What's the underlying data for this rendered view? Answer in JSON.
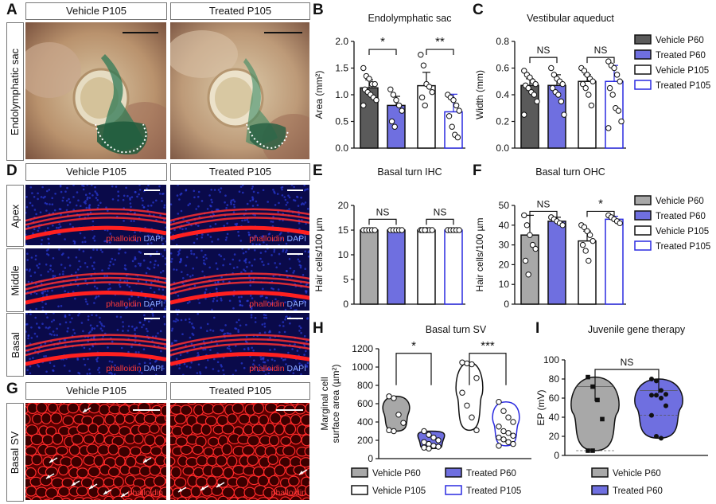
{
  "panel_letters": [
    "A",
    "B",
    "C",
    "D",
    "E",
    "F",
    "G",
    "H",
    "I"
  ],
  "panelA": {
    "headers": [
      "Vehicle P105",
      "Treated P105"
    ],
    "row_label": "Endolymphatic sac"
  },
  "panelD": {
    "headers": [
      "Vehicle P105",
      "Treated P105"
    ],
    "rows": [
      "Apex",
      "Middle",
      "Basal"
    ],
    "stain_red": "phalloidin",
    "stain_blue": "DAPI"
  },
  "panelG": {
    "headers": [
      "Vehicle P105",
      "Treated P105"
    ],
    "row_label": "Basal SV",
    "stain_red": "phalloidin"
  },
  "legend4": [
    "Vehicle P60",
    "Treated P60",
    "Vehicle P105",
    "Treated P105"
  ],
  "legend2": [
    "Vehicle P60",
    "Treated P60"
  ],
  "colors": {
    "vehicle_p60_dark": "#5a5a5a",
    "vehicle_p60_grey": "#a8a8a8",
    "treated_p60": "#6f6fe0",
    "vehicle_p105": "#ffffff",
    "treated_p105_edge": "#2a2ae0",
    "axis": "#111111"
  },
  "chart_data": [
    {
      "id": "B",
      "type": "bar",
      "title": "Endolymphatic sac",
      "ylabel": "Area (mm²)",
      "ylim": [
        0,
        2.0
      ],
      "yticks": [
        "0.0",
        "0.5",
        "1.0",
        "1.5",
        "2.0"
      ],
      "categories": [
        "Vehicle P60",
        "Treated P60",
        "Vehicle P105",
        "Treated P105"
      ],
      "values": [
        1.13,
        0.8,
        1.17,
        0.68
      ],
      "errors": [
        0.15,
        0.17,
        0.25,
        0.33
      ],
      "points": [
        [
          1.5,
          1.35,
          1.3,
          1.2,
          1.2,
          1.1,
          1.05,
          1.0,
          0.95,
          0.9,
          0.8
        ],
        [
          1.1,
          1.0,
          0.9,
          0.8,
          0.7,
          0.5,
          0.4
        ],
        [
          1.75,
          1.55,
          1.2,
          1.15,
          1.05,
          0.95,
          0.8
        ],
        [
          1.0,
          0.95,
          0.9,
          0.8,
          0.7,
          0.6,
          0.4,
          0.25,
          0.2
        ]
      ],
      "sig": [
        {
          "from": 0,
          "to": 1,
          "label": "*",
          "y": 1.85
        },
        {
          "from": 2,
          "to": 3,
          "label": "**",
          "y": 1.85
        }
      ]
    },
    {
      "id": "C",
      "type": "bar",
      "title": "Vestibular aqueduct",
      "ylabel": "Width (mm)",
      "ylim": [
        0,
        0.8
      ],
      "yticks": [
        "0.0",
        "0.2",
        "0.4",
        "0.6",
        "0.8"
      ],
      "categories": [
        "Vehicle P60",
        "Treated P60",
        "Vehicle P105",
        "Treated P105"
      ],
      "values": [
        0.47,
        0.47,
        0.5,
        0.5
      ],
      "errors": [
        0.05,
        0.08,
        0.05,
        0.12
      ],
      "points": [
        [
          0.58,
          0.55,
          0.53,
          0.5,
          0.48,
          0.47,
          0.45,
          0.42,
          0.4,
          0.35,
          0.25
        ],
        [
          0.6,
          0.55,
          0.52,
          0.5,
          0.48,
          0.45,
          0.42,
          0.4,
          0.35,
          0.25
        ],
        [
          0.6,
          0.58,
          0.55,
          0.52,
          0.5,
          0.48,
          0.45,
          0.4,
          0.32
        ],
        [
          0.65,
          0.62,
          0.6,
          0.55,
          0.5,
          0.45,
          0.4,
          0.3,
          0.28,
          0.2,
          0.15
        ]
      ],
      "sig": [
        {
          "from": 0,
          "to": 1,
          "label": "NS",
          "y": 0.68
        },
        {
          "from": 2,
          "to": 3,
          "label": "NS",
          "y": 0.68
        }
      ]
    },
    {
      "id": "E",
      "type": "bar",
      "title": "Basal turn IHC",
      "ylabel": "Hair cells/100 µm",
      "ylim": [
        0,
        20
      ],
      "yticks": [
        "0",
        "5",
        "10",
        "15",
        "20"
      ],
      "categories": [
        "Vehicle P60",
        "Treated P60",
        "Vehicle P105",
        "Treated P105"
      ],
      "values": [
        15,
        15,
        15,
        15
      ],
      "errors": [
        0,
        0,
        0,
        0
      ],
      "points": [
        [
          15,
          15,
          15,
          15,
          15
        ],
        [
          15,
          15,
          15,
          15,
          15
        ],
        [
          15,
          15,
          15,
          15,
          15,
          15,
          15
        ],
        [
          15,
          15,
          15,
          15,
          15
        ]
      ],
      "sig": [
        {
          "from": 0,
          "to": 1,
          "label": "NS",
          "y": 17.2
        },
        {
          "from": 2,
          "to": 3,
          "label": "NS",
          "y": 17.2
        }
      ]
    },
    {
      "id": "F",
      "type": "bar",
      "title": "Basal turn OHC",
      "ylabel": "Hair cells/100 µm",
      "ylim": [
        0,
        50
      ],
      "yticks": [
        "0",
        "10",
        "20",
        "30",
        "40",
        "50"
      ],
      "categories": [
        "Vehicle P60",
        "Treated P60",
        "Vehicle P105",
        "Treated P105"
      ],
      "values": [
        35,
        42,
        32,
        43
      ],
      "errors": [
        10,
        2,
        5,
        1.5
      ],
      "points": [
        [
          45,
          40,
          35,
          30,
          28,
          22,
          15
        ],
        [
          44,
          43,
          42,
          41,
          40
        ],
        [
          40,
          39,
          37,
          35,
          32,
          30,
          27,
          22
        ],
        [
          45,
          44,
          43,
          42,
          41
        ]
      ],
      "sig": [
        {
          "from": 0,
          "to": 1,
          "label": "NS",
          "y": 47
        },
        {
          "from": 2,
          "to": 3,
          "label": "*",
          "y": 47
        }
      ]
    },
    {
      "id": "H",
      "type": "violin",
      "title": "Basal turn SV",
      "ylabel": "Marginal cell surface area (µm²)",
      "ylim": [
        0,
        1200
      ],
      "yticks": [
        "0",
        "200",
        "400",
        "600",
        "800",
        "1000",
        "1200"
      ],
      "categories": [
        "Vehicle P60",
        "Treated P60",
        "Vehicle P105",
        "Treated P105"
      ],
      "points": [
        [
          680,
          660,
          480,
          390,
          310,
          300
        ],
        [
          300,
          260,
          230,
          200,
          180,
          160,
          140,
          130,
          120,
          110
        ],
        [
          1050,
          1040,
          1030,
          880,
          720,
          580,
          450,
          310
        ],
        [
          620,
          520,
          450,
          400,
          350,
          300,
          280,
          250,
          230,
          210,
          180,
          160,
          140
        ]
      ],
      "sig": [
        {
          "from": 0,
          "to": 1,
          "label": "*",
          "y": 1150
        },
        {
          "from": 2,
          "to": 3,
          "label": "***",
          "y": 1150
        }
      ]
    },
    {
      "id": "I",
      "type": "violin",
      "title": "Juvenile gene therapy",
      "ylabel": "EP (mV)",
      "ylim": [
        0,
        100
      ],
      "yticks": [
        "0",
        "20",
        "40",
        "60",
        "80",
        "100"
      ],
      "categories": [
        "Vehicle P60",
        "Treated P60"
      ],
      "points": [
        [
          82,
          72,
          58,
          38,
          5,
          5
        ],
        [
          80,
          78,
          68,
          64,
          63,
          63,
          60,
          52,
          42,
          20,
          18
        ]
      ],
      "sig": [
        {
          "from": 0,
          "to": 1,
          "label": "NS",
          "y": 90
        }
      ]
    }
  ]
}
